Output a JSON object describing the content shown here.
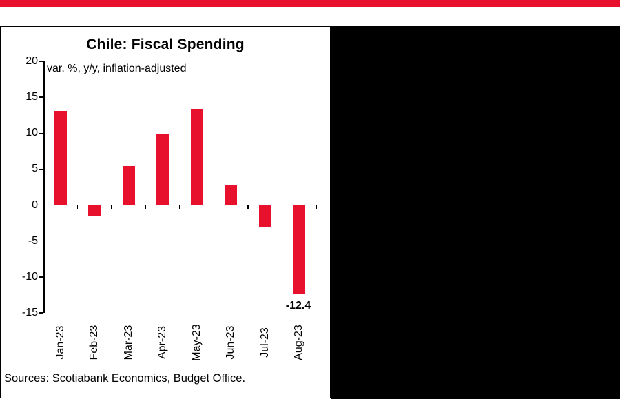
{
  "page": {
    "top_stripe_color": "#e8112d",
    "right_panel_color": "#000000",
    "panel_background": "#ffffff"
  },
  "chart_data": {
    "type": "bar",
    "title": "Chile: Fiscal Spending",
    "subtitle": "var. %, y/y, inflation-adjusted",
    "categories": [
      "Jan-23",
      "Feb-23",
      "Mar-23",
      "Apr-23",
      "May-23",
      "Jun-23",
      "Jul-23",
      "Aug-23"
    ],
    "values": [
      13.1,
      -1.5,
      5.4,
      9.9,
      13.4,
      2.7,
      -3.0,
      -12.4
    ],
    "bar_color": "#e8112d",
    "xlabel": "",
    "ylabel": "",
    "ylim": [
      -15,
      20
    ],
    "yticks": [
      20,
      15,
      10,
      5,
      0,
      -5,
      -10,
      -15
    ],
    "grid": false,
    "legend": "none",
    "annotations": [
      {
        "text": "-12.4",
        "category": "Aug-23"
      }
    ]
  },
  "footer": {
    "sources": "Sources: Scotiabank Economics, Budget Office."
  }
}
